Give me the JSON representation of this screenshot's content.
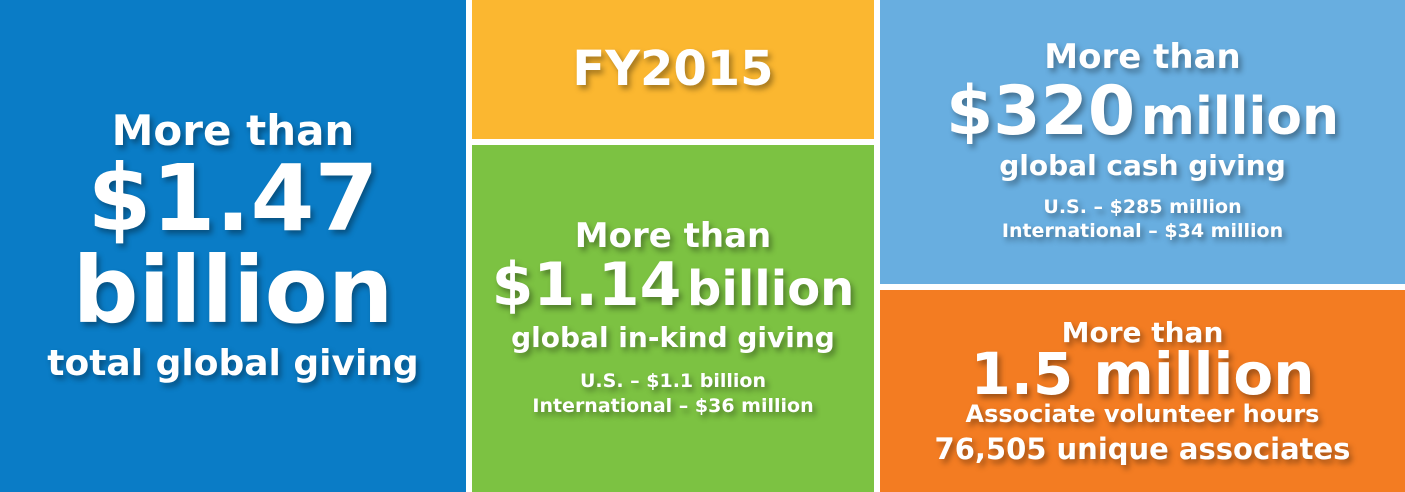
{
  "total": {
    "lead": "More than",
    "amount": "$1.47",
    "unit": "billion",
    "label": "total global giving"
  },
  "year": "FY2015",
  "in_kind": {
    "lead": "More than",
    "amount": "$1.14",
    "unit": "billion",
    "label": "global in-kind giving",
    "details": [
      "U.S. – $1.1 billion",
      "International – $36 million"
    ]
  },
  "cash": {
    "lead": "More than",
    "amount": "$320",
    "unit": "million",
    "label": "global cash giving",
    "details": [
      "U.S. – $285 million",
      "International – $34 million"
    ]
  },
  "volunteer": {
    "lead": "More than",
    "amount": "1.5 million",
    "label": "Associate volunteer hours",
    "footer": "76,505 unique associates"
  }
}
